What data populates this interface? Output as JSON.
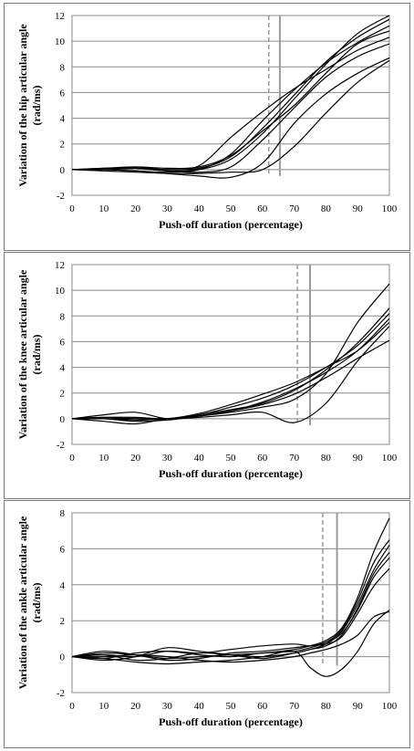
{
  "chart_data": [
    {
      "type": "line",
      "xlabel": "Push-off duration (percentage)",
      "ylabel": [
        "Variation of the hip articular angle",
        "(rad/ms)"
      ],
      "xlim": [
        0,
        100
      ],
      "ylim": [
        -2,
        12
      ],
      "xticks": [
        0,
        10,
        20,
        30,
        40,
        50,
        60,
        70,
        80,
        90,
        100
      ],
      "yticks": [
        -2,
        0,
        2,
        4,
        6,
        8,
        10,
        12
      ],
      "grid": "horizontal",
      "vlines": [
        {
          "x": 62,
          "style": "dashed"
        },
        {
          "x": 65.5,
          "style": "solid"
        }
      ],
      "series": [
        {
          "x": [
            0,
            10,
            20,
            30,
            40,
            50,
            60,
            70,
            80,
            90,
            100
          ],
          "y": [
            0,
            0,
            0.1,
            -0.1,
            0,
            0.8,
            2.8,
            5.5,
            8.2,
            10.6,
            12
          ]
        },
        {
          "x": [
            0,
            10,
            20,
            30,
            40,
            50,
            60,
            70,
            80,
            90,
            100
          ],
          "y": [
            0,
            0.1,
            0.2,
            0,
            0.1,
            1,
            3.2,
            5.8,
            8.4,
            10.3,
            11.7
          ]
        },
        {
          "x": [
            0,
            10,
            20,
            30,
            40,
            50,
            60,
            70,
            80,
            90,
            100
          ],
          "y": [
            0,
            0,
            -0.1,
            -0.2,
            0,
            1.2,
            3.8,
            6.2,
            8.3,
            9.9,
            11.2
          ]
        },
        {
          "x": [
            0,
            10,
            20,
            30,
            40,
            50,
            60,
            70,
            80,
            90,
            100
          ],
          "y": [
            0,
            0,
            0.1,
            0,
            0.3,
            2.5,
            4.5,
            6.3,
            7.8,
            9.3,
            10.3
          ]
        },
        {
          "x": [
            0,
            10,
            20,
            30,
            40,
            50,
            60,
            70,
            80,
            90,
            100
          ],
          "y": [
            0,
            0.1,
            0.1,
            -0.1,
            -0.2,
            0.2,
            2.3,
            4.8,
            7.2,
            8.8,
            9.8
          ]
        },
        {
          "x": [
            0,
            10,
            20,
            30,
            40,
            50,
            60,
            70,
            80,
            90,
            100
          ],
          "y": [
            0,
            0,
            -0.1,
            -0.3,
            -0.5,
            -0.6,
            0.5,
            3.6,
            5.9,
            7.5,
            8.7
          ]
        },
        {
          "x": [
            0,
            10,
            20,
            30,
            40,
            50,
            60,
            70,
            80,
            90,
            100
          ],
          "y": [
            0,
            -0.1,
            -0.2,
            -0.3,
            -0.3,
            -0.2,
            0,
            1.8,
            4.4,
            6.8,
            8.5
          ]
        },
        {
          "x": [
            0,
            10,
            20,
            30,
            40,
            50,
            60,
            70,
            80,
            90,
            100
          ],
          "y": [
            0,
            0,
            0.2,
            0.1,
            0.2,
            1.1,
            3,
            5,
            7.5,
            9.8,
            10.8
          ]
        }
      ]
    },
    {
      "type": "line",
      "xlabel": "Push-off duration (percentage)",
      "ylabel": [
        "Variation of the knee articular angle",
        "(rad/ms)"
      ],
      "xlim": [
        0,
        100
      ],
      "ylim": [
        -2,
        12
      ],
      "xticks": [
        0,
        10,
        20,
        30,
        40,
        50,
        60,
        70,
        80,
        90,
        100
      ],
      "yticks": [
        -2,
        0,
        2,
        4,
        6,
        8,
        10,
        12
      ],
      "grid": "horizontal",
      "vlines": [
        {
          "x": 71,
          "style": "dashed"
        },
        {
          "x": 75,
          "style": "solid"
        }
      ],
      "series": [
        {
          "x": [
            0,
            10,
            20,
            30,
            40,
            50,
            60,
            70,
            80,
            90,
            100
          ],
          "y": [
            0,
            0.3,
            0.5,
            0,
            0.2,
            0.5,
            0.9,
            1.5,
            3.5,
            7.5,
            10.5
          ]
        },
        {
          "x": [
            0,
            10,
            20,
            30,
            40,
            50,
            60,
            70,
            80,
            90,
            100
          ],
          "y": [
            0,
            0.1,
            0.1,
            0,
            0.3,
            0.7,
            1.2,
            2.2,
            3.8,
            5.9,
            8.6
          ]
        },
        {
          "x": [
            0,
            10,
            20,
            30,
            40,
            50,
            60,
            70,
            80,
            90,
            100
          ],
          "y": [
            0,
            0,
            -0.1,
            0,
            0.3,
            0.9,
            1.6,
            2.6,
            4,
            5.7,
            8.2
          ]
        },
        {
          "x": [
            0,
            10,
            20,
            30,
            40,
            50,
            60,
            70,
            80,
            90,
            100
          ],
          "y": [
            0,
            0,
            -0.2,
            -0.1,
            0.2,
            0.6,
            1.3,
            2.3,
            3.6,
            5.3,
            7.8
          ]
        },
        {
          "x": [
            0,
            10,
            20,
            30,
            40,
            50,
            60,
            70,
            80,
            90,
            100
          ],
          "y": [
            0,
            0.1,
            0,
            0,
            0.4,
            1.1,
            1.9,
            2.8,
            4,
            5.3,
            7.5
          ]
        },
        {
          "x": [
            0,
            10,
            20,
            30,
            40,
            50,
            60,
            70,
            80,
            90,
            100
          ],
          "y": [
            0,
            -0.2,
            -0.4,
            0,
            0.2,
            0.6,
            1.1,
            1.9,
            3.2,
            4.7,
            6.1
          ]
        },
        {
          "x": [
            0,
            10,
            20,
            30,
            40,
            50,
            60,
            70,
            80,
            90,
            100
          ],
          "y": [
            0,
            0,
            0,
            0,
            0.1,
            0.3,
            0.5,
            -0.3,
            1.2,
            4.5,
            7.2
          ]
        }
      ]
    },
    {
      "type": "line",
      "xlabel": "Push-off duration (percentage)",
      "ylabel": [
        "Variation of the ankle articular angle",
        "(rad/ms)"
      ],
      "xlim": [
        0,
        100
      ],
      "ylim": [
        -2,
        8
      ],
      "xticks": [
        0,
        10,
        20,
        30,
        40,
        50,
        60,
        70,
        80,
        90,
        100
      ],
      "yticks": [
        -2,
        0,
        2,
        4,
        6,
        8
      ],
      "grid": "horizontal",
      "vlines": [
        {
          "x": 79,
          "style": "dashed"
        },
        {
          "x": 83.5,
          "style": "solid"
        }
      ],
      "series": [
        {
          "x": [
            0,
            10,
            20,
            30,
            40,
            50,
            60,
            70,
            75,
            80,
            85,
            90,
            95,
            100
          ],
          "y": [
            0,
            0.2,
            0.1,
            -0.1,
            0,
            0.1,
            0.2,
            0.4,
            0.6,
            0.9,
            1.6,
            3.3,
            5.8,
            7.7
          ]
        },
        {
          "x": [
            0,
            10,
            20,
            30,
            40,
            50,
            60,
            70,
            75,
            80,
            85,
            90,
            95,
            100
          ],
          "y": [
            0,
            -0.1,
            0.2,
            0.3,
            0.1,
            0,
            0.2,
            0.3,
            0.5,
            0.8,
            1.5,
            3.1,
            5.2,
            6.5
          ]
        },
        {
          "x": [
            0,
            10,
            20,
            30,
            40,
            50,
            60,
            70,
            75,
            80,
            85,
            90,
            95,
            100
          ],
          "y": [
            0,
            0.1,
            -0.2,
            -0.1,
            0.2,
            0.1,
            0,
            0.2,
            0.4,
            0.7,
            1.4,
            2.9,
            4.8,
            6.2
          ]
        },
        {
          "x": [
            0,
            10,
            20,
            30,
            40,
            50,
            60,
            70,
            75,
            80,
            85,
            90,
            95,
            100
          ],
          "y": [
            0,
            -0.2,
            0,
            0.5,
            0.3,
            0.1,
            -0.1,
            0.2,
            0.4,
            0.6,
            1.2,
            2.7,
            4.6,
            5.8
          ]
        },
        {
          "x": [
            0,
            10,
            20,
            30,
            40,
            50,
            60,
            70,
            75,
            80,
            85,
            90,
            95,
            100
          ],
          "y": [
            0,
            0.3,
            0.1,
            -0.2,
            -0.1,
            0.2,
            0.3,
            0.5,
            0.6,
            0.7,
            1.1,
            2.4,
            3.9,
            4.9
          ]
        },
        {
          "x": [
            0,
            10,
            20,
            30,
            40,
            50,
            60,
            70,
            75,
            80,
            85,
            90,
            95,
            100
          ],
          "y": [
            0,
            -0.1,
            -0.3,
            -0.4,
            -0.3,
            -0.2,
            0,
            0.3,
            -0.6,
            -1.1,
            -0.7,
            0.3,
            1.8,
            2.6
          ]
        },
        {
          "x": [
            0,
            10,
            20,
            30,
            40,
            50,
            60,
            70,
            75,
            80,
            85,
            90,
            95,
            100
          ],
          "y": [
            0,
            0,
            0.1,
            0,
            -0.2,
            -0.3,
            -0.2,
            0,
            0.2,
            0.4,
            0.7,
            1.2,
            2.2,
            2.5
          ]
        },
        {
          "x": [
            0,
            10,
            20,
            30,
            40,
            50,
            60,
            70,
            75,
            80,
            85,
            90,
            95,
            100
          ],
          "y": [
            0,
            0.1,
            0,
            0.3,
            0.2,
            0.4,
            0.6,
            0.7,
            0.6,
            0.8,
            1.3,
            2.6,
            4.4,
            5.5
          ]
        }
      ]
    }
  ]
}
